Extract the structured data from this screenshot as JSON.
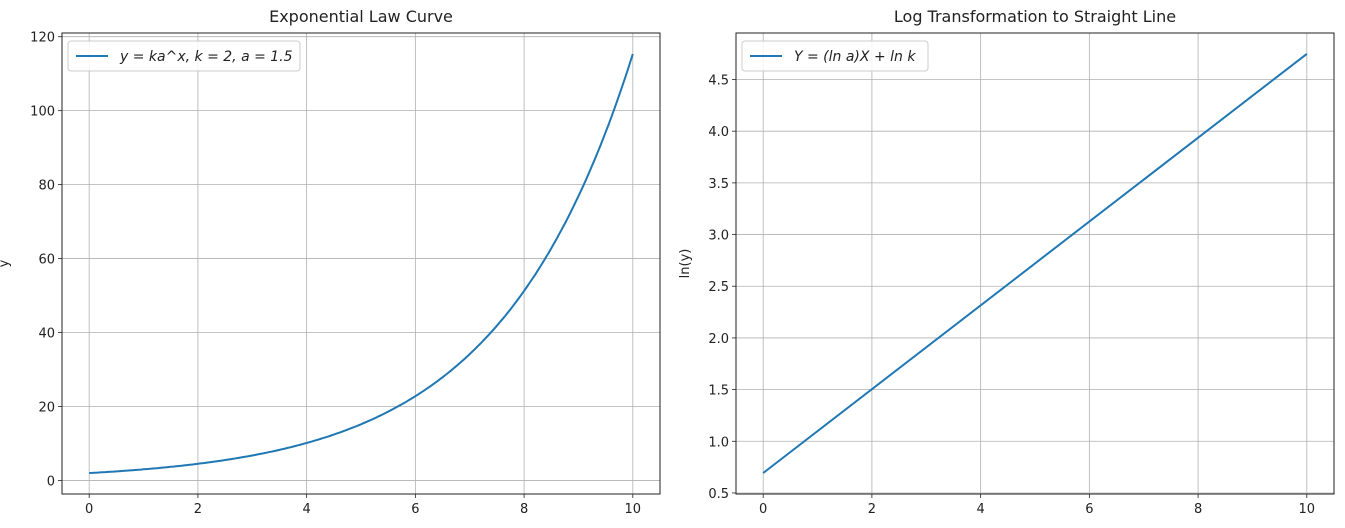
{
  "chart_data": [
    {
      "type": "line",
      "title": "Exponential Law Curve",
      "xlabel": "",
      "ylabel": "y",
      "xlim": [
        -0.5,
        10.5
      ],
      "ylim": [
        -3.67,
        121.0
      ],
      "xticks": [
        0,
        2,
        4,
        6,
        8,
        10
      ],
      "yticks": [
        0,
        20,
        40,
        60,
        80,
        100,
        120
      ],
      "xtick_labels": [
        "0",
        "2",
        "4",
        "6",
        "8",
        "10"
      ],
      "ytick_labels": [
        "0",
        "20",
        "40",
        "60",
        "80",
        "100",
        "120"
      ],
      "grid": true,
      "legend_position": "top-left",
      "series": [
        {
          "name": "y = ka^x, k = 2, a = 1.5",
          "function": "y = 2 * 1.5^x",
          "x_range": [
            0,
            10
          ],
          "color": "#1f77b4"
        }
      ]
    },
    {
      "type": "line",
      "title": "Log Transformation to Straight Line",
      "xlabel": "",
      "ylabel": "ln(y)",
      "xlim": [
        -0.5,
        10.5
      ],
      "ylim": [
        0.49,
        4.95
      ],
      "xticks": [
        0,
        2,
        4,
        6,
        8,
        10
      ],
      "yticks": [
        0.5,
        1.0,
        1.5,
        2.0,
        2.5,
        3.0,
        3.5,
        4.0,
        4.5
      ],
      "xtick_labels": [
        "0",
        "2",
        "4",
        "6",
        "8",
        "10"
      ],
      "ytick_labels": [
        "0.5",
        "1.0",
        "1.5",
        "2.0",
        "2.5",
        "3.0",
        "3.5",
        "4.0",
        "4.5"
      ],
      "grid": true,
      "legend_position": "top-left",
      "series": [
        {
          "name": "Y = (ln a)X + ln k",
          "x": [
            0,
            10
          ],
          "y": [
            0.693,
            4.748
          ],
          "color": "#1f77b4"
        }
      ]
    }
  ]
}
